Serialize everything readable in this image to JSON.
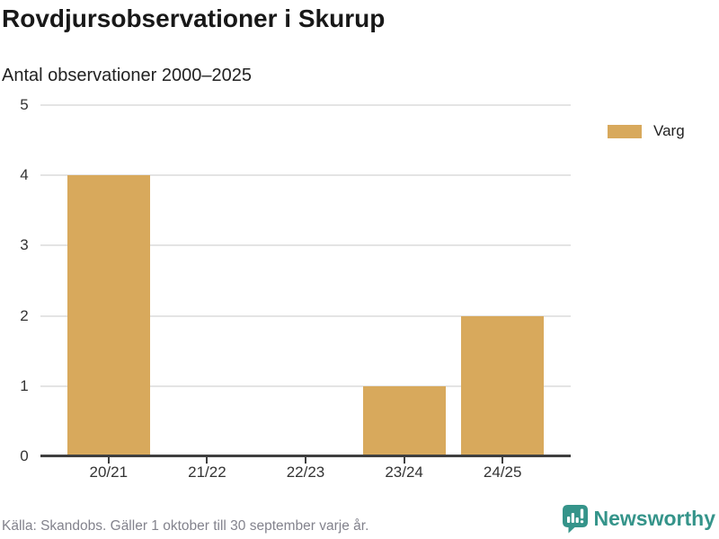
{
  "chart_data": {
    "type": "bar",
    "title": "Rovdjursobservationer i Skurup",
    "subtitle": "Antal observationer 2000–2025",
    "categories": [
      "20/21",
      "21/22",
      "22/23",
      "23/24",
      "24/25"
    ],
    "series": [
      {
        "name": "Varg",
        "values": [
          4,
          0,
          0,
          1,
          2
        ],
        "color": "#d8a95c"
      }
    ],
    "xlabel": "",
    "ylabel": "",
    "ylim": [
      0,
      5
    ],
    "yticks": [
      0,
      1,
      2,
      3,
      4,
      5
    ],
    "grid": true,
    "legend_position": "top-right",
    "axis_color": "#3f3f3f",
    "gridline_color": "#e4e4e4",
    "tick_label_color": "#333333"
  },
  "footer": {
    "source": "Källa: Skandobs. Gäller 1 oktober till 30 september varje år.",
    "brand": "Newsworthy",
    "brand_color": "#35948a"
  }
}
